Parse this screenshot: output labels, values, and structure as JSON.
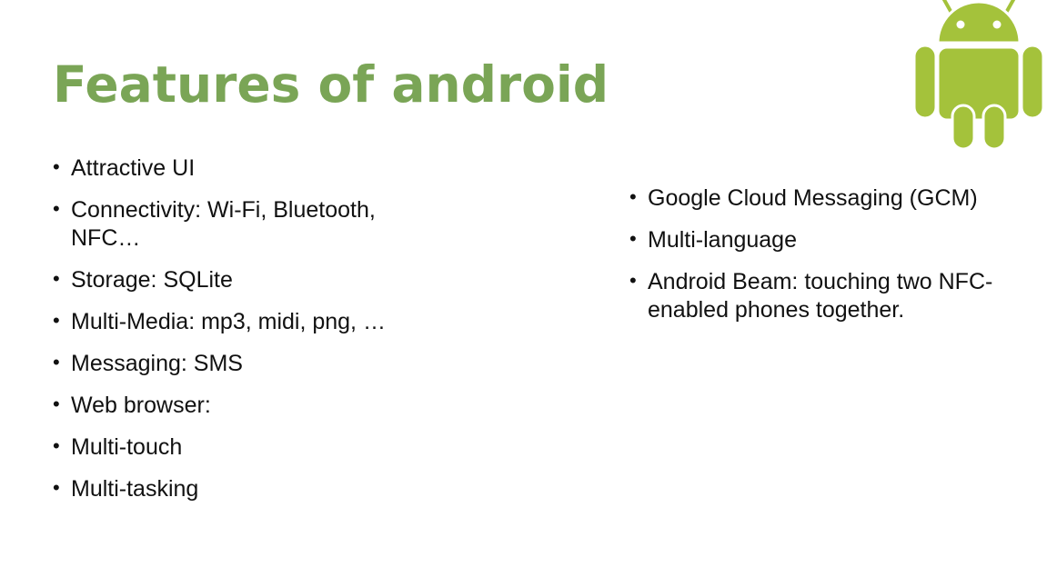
{
  "slide": {
    "title": "Features of android"
  },
  "left_list": {
    "items": [
      "Attractive UI",
      "Connectivity: Wi-Fi, Bluetooth, NFC…",
      "Storage: SQLite",
      "Multi-Media: mp3, midi, png, …",
      "Messaging: SMS",
      "Web browser:",
      "Multi-touch",
      "Multi-tasking"
    ]
  },
  "right_list": {
    "items": [
      "Google Cloud Messaging (GCM)",
      "Multi-language",
      "Android Beam: touching two NFC-enabled phones together."
    ]
  },
  "logo": {
    "icon": "android-robot-icon",
    "fill_color": "#a4c23b",
    "outline_color": "#ffffff"
  },
  "colors": {
    "title": "#7aa556",
    "text": "#111111",
    "background": "#ffffff"
  }
}
